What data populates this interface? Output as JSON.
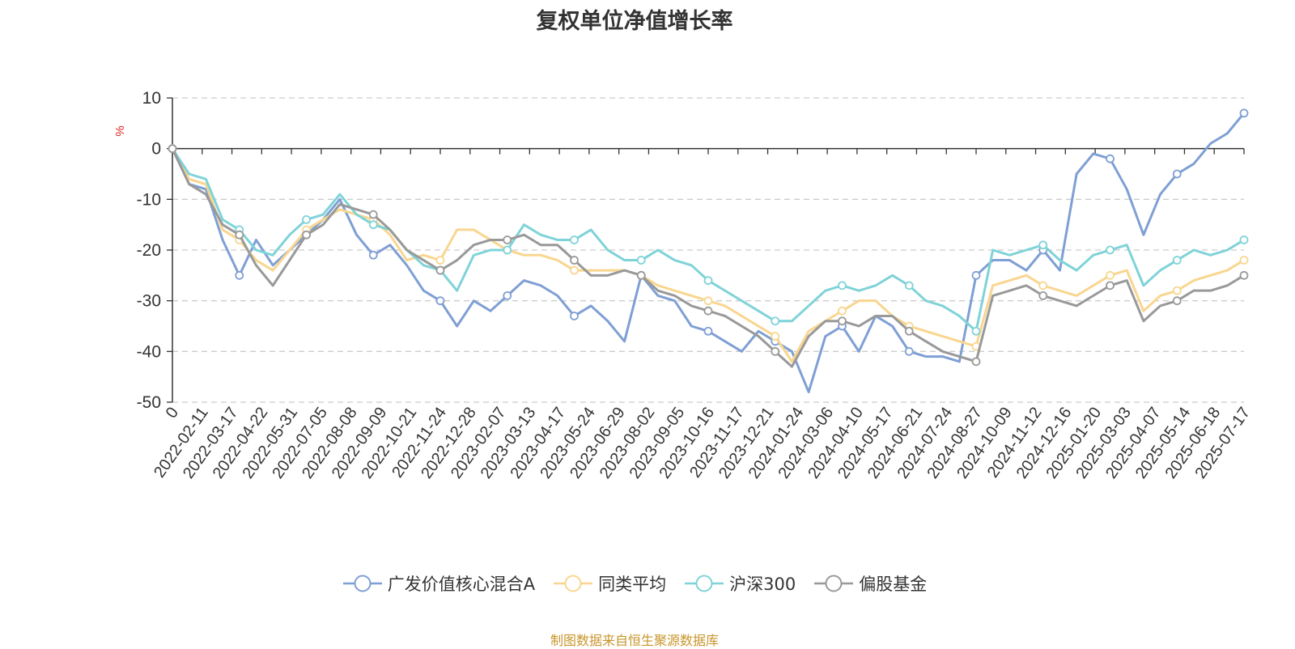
{
  "chart_data": {
    "type": "line",
    "title": "复权单位净值增长率",
    "ylabel": "%",
    "ylim": [
      -50,
      10
    ],
    "yticks": [
      10,
      0,
      -10,
      -20,
      -30,
      -40,
      -50
    ],
    "grid": true,
    "legend_position": "bottom",
    "x_tick_labels": [
      "0",
      "2022-02-11",
      "2022-03-17",
      "2022-04-22",
      "2022-05-31",
      "2022-07-05",
      "2022-08-08",
      "2022-09-09",
      "2022-10-21",
      "2022-11-24",
      "2022-12-28",
      "2023-02-07",
      "2023-03-13",
      "2023-04-17",
      "2023-05-24",
      "2023-06-29",
      "2023-08-02",
      "2023-09-05",
      "2023-10-16",
      "2023-11-17",
      "2023-12-21",
      "2024-01-24",
      "2024-03-06",
      "2024-04-10",
      "2024-05-17",
      "2024-06-21",
      "2024-07-24",
      "2024-08-27",
      "2024-10-09",
      "2024-11-12",
      "2024-12-16",
      "2025-01-20",
      "2025-03-03",
      "2025-04-07",
      "2025-05-14",
      "2025-06-18",
      "2025-07-17"
    ],
    "series": [
      {
        "name": "广发价值核心混合A",
        "color": "#7f9fd4",
        "values": [
          0,
          -7,
          -8,
          -18,
          -25,
          -18,
          -23,
          -20,
          -17,
          -14,
          -10,
          -17,
          -21,
          -19,
          -23,
          -28,
          -30,
          -35,
          -30,
          -32,
          -29,
          -26,
          -27,
          -29,
          -33,
          -31,
          -34,
          -38,
          -25,
          -29,
          -30,
          -35,
          -36,
          -38,
          -40,
          -36,
          -38,
          -40,
          -48,
          -37,
          -35,
          -40,
          -33,
          -35,
          -40,
          -41,
          -41,
          -42,
          -25,
          -22,
          -22,
          -24,
          -20,
          -24,
          -5,
          -1,
          -2,
          -8,
          -17,
          -9,
          -5,
          -3,
          1,
          3,
          7
        ]
      },
      {
        "name": "同类平均",
        "color": "#f9d68f",
        "values": [
          0,
          -6,
          -7,
          -16,
          -18,
          -22,
          -24,
          -20,
          -16,
          -14,
          -12,
          -13,
          -14,
          -17,
          -22,
          -21,
          -22,
          -16,
          -16,
          -18,
          -20,
          -21,
          -21,
          -22,
          -24,
          -24,
          -24,
          -24,
          -25,
          -27,
          -28,
          -29,
          -30,
          -31,
          -33,
          -35,
          -37,
          -42,
          -36,
          -34,
          -32,
          -30,
          -30,
          -33,
          -35,
          -36,
          -37,
          -38,
          -39,
          -27,
          -26,
          -25,
          -27,
          -28,
          -29,
          -27,
          -25,
          -24,
          -32,
          -29,
          -28,
          -26,
          -25,
          -24,
          -22
        ]
      },
      {
        "name": "沪深300",
        "color": "#7fd3d8",
        "values": [
          0,
          -5,
          -6,
          -14,
          -16,
          -20,
          -21,
          -17,
          -14,
          -13,
          -9,
          -13,
          -15,
          -16,
          -20,
          -23,
          -24,
          -28,
          -21,
          -20,
          -20,
          -15,
          -17,
          -18,
          -18,
          -16,
          -20,
          -22,
          -22,
          -20,
          -22,
          -23,
          -26,
          -28,
          -30,
          -32,
          -34,
          -34,
          -31,
          -28,
          -27,
          -28,
          -27,
          -25,
          -27,
          -30,
          -31,
          -33,
          -36,
          -20,
          -21,
          -20,
          -19,
          -22,
          -24,
          -21,
          -20,
          -19,
          -27,
          -24,
          -22,
          -20,
          -21,
          -20,
          -18
        ]
      },
      {
        "name": "偏股基金",
        "color": "#999999",
        "values": [
          0,
          -7,
          -9,
          -15,
          -17,
          -23,
          -27,
          -22,
          -17,
          -15,
          -11,
          -12,
          -13,
          -16,
          -20,
          -22,
          -24,
          -22,
          -19,
          -18,
          -18,
          -17,
          -19,
          -19,
          -22,
          -25,
          -25,
          -24,
          -25,
          -28,
          -29,
          -31,
          -32,
          -33,
          -35,
          -37,
          -40,
          -43,
          -37,
          -34,
          -34,
          -35,
          -33,
          -33,
          -36,
          -38,
          -40,
          -41,
          -42,
          -29,
          -28,
          -27,
          -29,
          -30,
          -31,
          -29,
          -27,
          -26,
          -34,
          -31,
          -30,
          -28,
          -28,
          -27,
          -25
        ]
      }
    ]
  },
  "source_note": "制图数据来自恒生聚源数据库"
}
